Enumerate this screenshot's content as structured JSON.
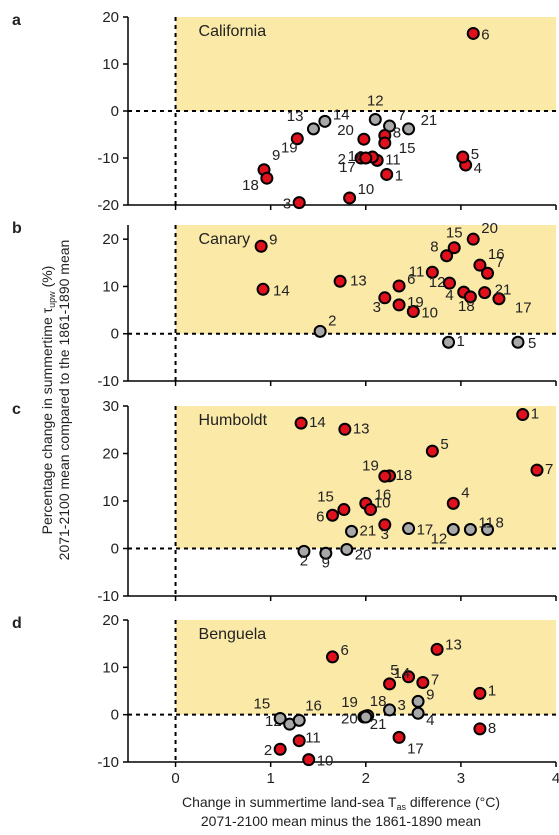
{
  "figure": {
    "y_axis_title_line1": "Percentage change in summertime τ",
    "y_axis_title_sub": "upw",
    "y_axis_title_tail": " (%)",
    "y_axis_title_line2": "2071-2100 mean compared to the 1861-1890 mean",
    "x_axis_title_line1": "Change in summertime land-sea T",
    "x_axis_title_sub": "as",
    "x_axis_title_tail": " difference (°C)",
    "x_axis_title_line2": "2071-2100 mean minus the 1861-1890 mean",
    "x_ticks": [
      "0",
      "1",
      "2",
      "3",
      "4"
    ]
  },
  "colors": {
    "positive_fill": "#e0101c",
    "neutral_fill": "#a8a8a8",
    "highlight_region": "#fbe9a8",
    "marker_stroke": "#000000"
  },
  "chart_data": [
    {
      "type": "scatter",
      "panel_label": "a",
      "region": "California",
      "xlim": [
        -0.5,
        4
      ],
      "ylim": [
        -20,
        20
      ],
      "yticks": [
        -20,
        -10,
        0,
        10,
        20
      ],
      "points": [
        {
          "id": "1",
          "x": 2.22,
          "y": -13.5,
          "color": "red"
        },
        {
          "id": "2",
          "x": 1.95,
          "y": -10.0,
          "color": "red"
        },
        {
          "id": "3",
          "x": 1.3,
          "y": -19.5,
          "color": "red"
        },
        {
          "id": "4",
          "x": 3.05,
          "y": -11.5,
          "color": "red"
        },
        {
          "id": "5",
          "x": 3.02,
          "y": -9.8,
          "color": "red"
        },
        {
          "id": "6",
          "x": 3.13,
          "y": 16.5,
          "color": "red"
        },
        {
          "id": "7",
          "x": 2.25,
          "y": -3.2,
          "color": "grey"
        },
        {
          "id": "8",
          "x": 2.2,
          "y": -5.2,
          "color": "red"
        },
        {
          "id": "9",
          "x": 0.93,
          "y": -12.5,
          "color": "red"
        },
        {
          "id": "10",
          "x": 1.83,
          "y": -18.5,
          "color": "red"
        },
        {
          "id": "11",
          "x": 2.12,
          "y": -10.5,
          "color": "red"
        },
        {
          "id": "12",
          "x": 2.1,
          "y": -1.8,
          "color": "grey"
        },
        {
          "id": "13",
          "x": 1.45,
          "y": -3.8,
          "color": "grey"
        },
        {
          "id": "14",
          "x": 1.57,
          "y": -2.2,
          "color": "grey"
        },
        {
          "id": "15",
          "x": 2.2,
          "y": -6.8,
          "color": "red"
        },
        {
          "id": "16",
          "x": 2.07,
          "y": -9.8,
          "color": "red"
        },
        {
          "id": "17",
          "x": 2.0,
          "y": -10.0,
          "color": "red"
        },
        {
          "id": "18",
          "x": 0.96,
          "y": -14.3,
          "color": "red"
        },
        {
          "id": "19",
          "x": 1.28,
          "y": -5.9,
          "color": "red"
        },
        {
          "id": "20",
          "x": 1.98,
          "y": -6.0,
          "color": "red"
        },
        {
          "id": "21",
          "x": 2.45,
          "y": -3.8,
          "color": "grey"
        }
      ]
    },
    {
      "type": "scatter",
      "panel_label": "b",
      "region": "Canary",
      "xlim": [
        -0.5,
        4
      ],
      "ylim": [
        -10,
        23
      ],
      "yticks": [
        -10,
        0,
        10,
        20
      ],
      "points": [
        {
          "id": "1",
          "x": 2.87,
          "y": -1.8,
          "color": "grey"
        },
        {
          "id": "2",
          "x": 1.52,
          "y": 0.5,
          "color": "grey"
        },
        {
          "id": "3",
          "x": 2.2,
          "y": 7.6,
          "color": "red"
        },
        {
          "id": "4",
          "x": 3.03,
          "y": 8.8,
          "color": "red"
        },
        {
          "id": "5",
          "x": 3.6,
          "y": -1.8,
          "color": "grey"
        },
        {
          "id": "6",
          "x": 2.35,
          "y": 10.1,
          "color": "red"
        },
        {
          "id": "7",
          "x": 3.28,
          "y": 12.8,
          "color": "red"
        },
        {
          "id": "8",
          "x": 2.85,
          "y": 16.5,
          "color": "red"
        },
        {
          "id": "9",
          "x": 0.9,
          "y": 18.5,
          "color": "red"
        },
        {
          "id": "10",
          "x": 2.5,
          "y": 4.7,
          "color": "red"
        },
        {
          "id": "11",
          "x": 2.7,
          "y": 13.0,
          "color": "red"
        },
        {
          "id": "12",
          "x": 2.88,
          "y": 10.7,
          "color": "red"
        },
        {
          "id": "13",
          "x": 1.73,
          "y": 11.1,
          "color": "red"
        },
        {
          "id": "14",
          "x": 0.92,
          "y": 9.4,
          "color": "red"
        },
        {
          "id": "15",
          "x": 2.93,
          "y": 18.2,
          "color": "red"
        },
        {
          "id": "16",
          "x": 3.2,
          "y": 14.5,
          "color": "red"
        },
        {
          "id": "17",
          "x": 3.4,
          "y": 7.4,
          "color": "red"
        },
        {
          "id": "18",
          "x": 3.1,
          "y": 7.8,
          "color": "red"
        },
        {
          "id": "19",
          "x": 2.35,
          "y": 6.1,
          "color": "red"
        },
        {
          "id": "20",
          "x": 3.13,
          "y": 20.0,
          "color": "red"
        },
        {
          "id": "21",
          "x": 3.25,
          "y": 8.7,
          "color": "red"
        }
      ]
    },
    {
      "type": "scatter",
      "panel_label": "c",
      "region": "Humboldt",
      "xlim": [
        -0.5,
        4
      ],
      "ylim": [
        -10,
        30
      ],
      "yticks": [
        -10,
        0,
        10,
        20,
        30
      ],
      "points": [
        {
          "id": "1",
          "x": 3.65,
          "y": 28.2,
          "color": "red"
        },
        {
          "id": "2",
          "x": 1.35,
          "y": -0.6,
          "color": "grey"
        },
        {
          "id": "3",
          "x": 2.2,
          "y": 5.0,
          "color": "red"
        },
        {
          "id": "4",
          "x": 2.92,
          "y": 9.5,
          "color": "red"
        },
        {
          "id": "5",
          "x": 2.7,
          "y": 20.5,
          "color": "red"
        },
        {
          "id": "6",
          "x": 1.65,
          "y": 7.0,
          "color": "red"
        },
        {
          "id": "7",
          "x": 3.8,
          "y": 16.5,
          "color": "red"
        },
        {
          "id": "8",
          "x": 3.28,
          "y": 4.0,
          "color": "grey"
        },
        {
          "id": "9",
          "x": 1.58,
          "y": -1.0,
          "color": "grey"
        },
        {
          "id": "10",
          "x": 2.0,
          "y": 9.5,
          "color": "red"
        },
        {
          "id": "11",
          "x": 3.1,
          "y": 4.0,
          "color": "grey"
        },
        {
          "id": "12",
          "x": 2.92,
          "y": 4.0,
          "color": "grey"
        },
        {
          "id": "13",
          "x": 1.78,
          "y": 25.1,
          "color": "red"
        },
        {
          "id": "14",
          "x": 1.32,
          "y": 26.4,
          "color": "red"
        },
        {
          "id": "15",
          "x": 1.77,
          "y": 8.2,
          "color": "red"
        },
        {
          "id": "16",
          "x": 2.05,
          "y": 8.2,
          "color": "red"
        },
        {
          "id": "17",
          "x": 2.45,
          "y": 4.2,
          "color": "grey"
        },
        {
          "id": "18",
          "x": 2.25,
          "y": 15.3,
          "color": "red"
        },
        {
          "id": "19",
          "x": 2.2,
          "y": 15.2,
          "color": "red"
        },
        {
          "id": "20",
          "x": 1.8,
          "y": -0.2,
          "color": "grey"
        },
        {
          "id": "21",
          "x": 1.85,
          "y": 3.6,
          "color": "grey"
        }
      ]
    },
    {
      "type": "scatter",
      "panel_label": "d",
      "region": "Benguela",
      "xlim": [
        -0.5,
        4
      ],
      "ylim": [
        -10,
        20
      ],
      "yticks": [
        -10,
        0,
        10,
        20
      ],
      "points": [
        {
          "id": "1",
          "x": 3.2,
          "y": 4.5,
          "color": "red"
        },
        {
          "id": "2",
          "x": 1.1,
          "y": -7.3,
          "color": "red"
        },
        {
          "id": "3",
          "x": 2.25,
          "y": 1.0,
          "color": "grey"
        },
        {
          "id": "4",
          "x": 2.55,
          "y": 0.3,
          "color": "grey"
        },
        {
          "id": "5",
          "x": 2.45,
          "y": 8.0,
          "color": "red"
        },
        {
          "id": "6",
          "x": 1.65,
          "y": 12.2,
          "color": "red"
        },
        {
          "id": "7",
          "x": 2.6,
          "y": 6.8,
          "color": "red"
        },
        {
          "id": "8",
          "x": 3.2,
          "y": -3.0,
          "color": "red"
        },
        {
          "id": "9",
          "x": 2.55,
          "y": 2.8,
          "color": "grey"
        },
        {
          "id": "10",
          "x": 1.4,
          "y": -9.5,
          "color": "red"
        },
        {
          "id": "11",
          "x": 1.3,
          "y": -5.5,
          "color": "red"
        },
        {
          "id": "12",
          "x": 1.2,
          "y": -2.0,
          "color": "grey"
        },
        {
          "id": "13",
          "x": 2.75,
          "y": 13.8,
          "color": "red"
        },
        {
          "id": "14",
          "x": 2.25,
          "y": 6.5,
          "color": "red"
        },
        {
          "id": "15",
          "x": 1.1,
          "y": -0.8,
          "color": "grey"
        },
        {
          "id": "16",
          "x": 1.3,
          "y": -1.2,
          "color": "grey"
        },
        {
          "id": "17",
          "x": 2.35,
          "y": -4.8,
          "color": "red"
        },
        {
          "id": "18",
          "x": 2.0,
          "y": -0.3,
          "color": "grey"
        },
        {
          "id": "19",
          "x": 1.98,
          "y": -0.5,
          "color": "grey"
        },
        {
          "id": "20",
          "x": 2.02,
          "y": -0.2,
          "color": "grey"
        },
        {
          "id": "21",
          "x": 2.0,
          "y": -0.5,
          "color": "grey"
        }
      ]
    }
  ]
}
